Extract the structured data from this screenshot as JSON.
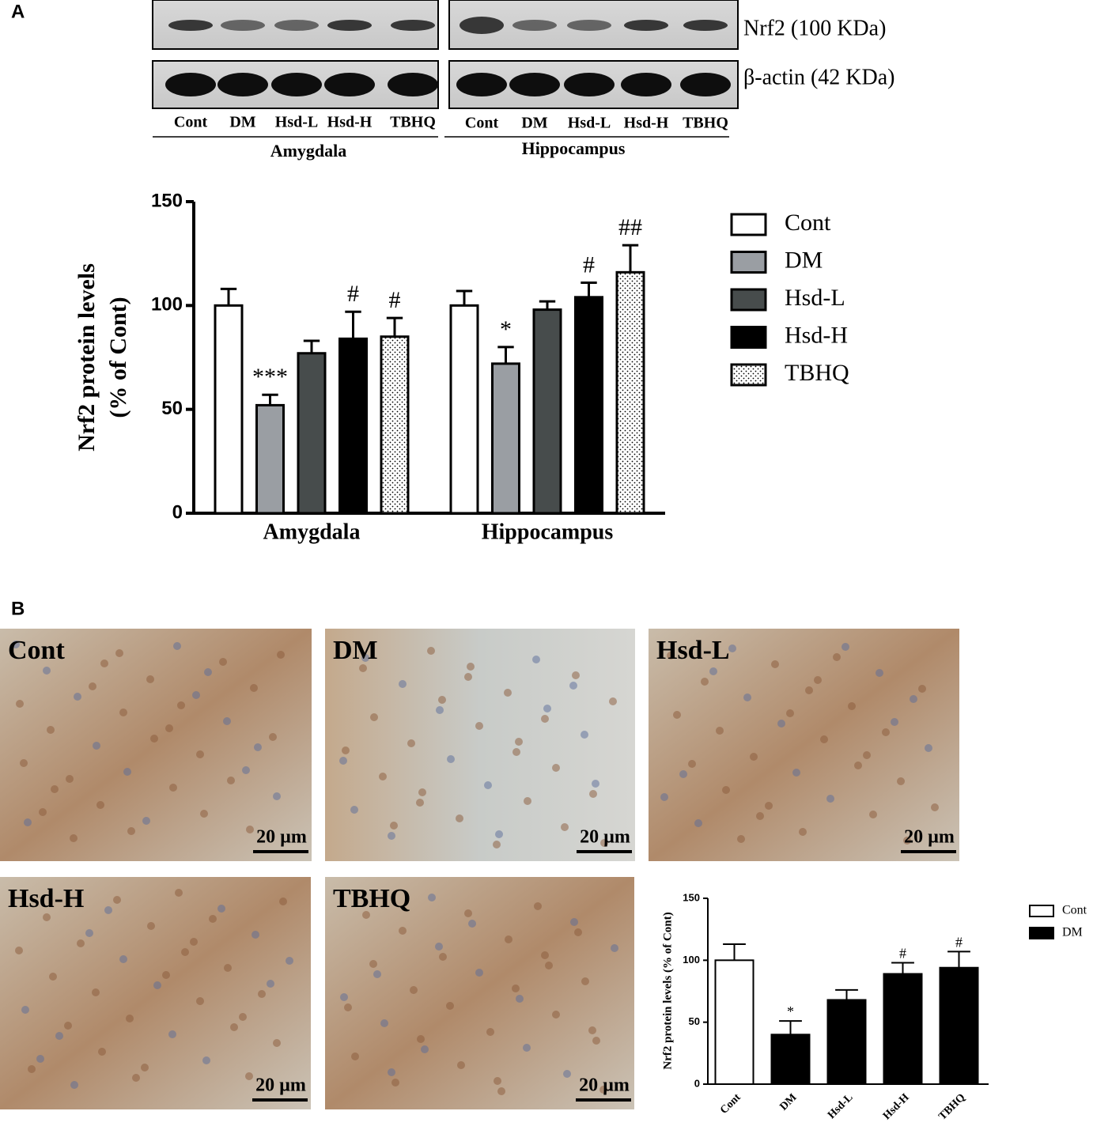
{
  "panel_a_label": "A",
  "panel_b_label": "B",
  "blot": {
    "bands": [
      "Nrf2 (100 KDa)",
      "β-actin (42 KDa)"
    ],
    "lanes": [
      [
        "Cont",
        "DM",
        "Hsd-L",
        "Hsd-H",
        "TBHQ"
      ],
      [
        "Cont",
        "DM",
        "Hsd-L",
        "Hsd-H",
        "TBHQ"
      ]
    ],
    "regions": [
      "Amygdala",
      "Hippocampus"
    ]
  },
  "micrographs": [
    {
      "label": "Cont",
      "scale": "20 µm"
    },
    {
      "label": "DM",
      "scale": "20 µm"
    },
    {
      "label": "Hsd-L",
      "scale": "20 µm"
    },
    {
      "label": "Hsd-H",
      "scale": "20 µm"
    },
    {
      "label": "TBHQ",
      "scale": "20 µm"
    }
  ],
  "chart_data": [
    {
      "type": "bar",
      "ylabel": [
        "Nrf2 protein levels",
        "(% of Cont)"
      ],
      "categories": [
        "Amygdala",
        "Hippocampus"
      ],
      "series": [
        {
          "name": "Cont",
          "color": "#ffffff",
          "values": [
            100,
            100
          ],
          "errors": [
            8,
            7
          ],
          "annotations": [
            null,
            null
          ]
        },
        {
          "name": "DM",
          "color": "#9a9ea3",
          "values": [
            52,
            72
          ],
          "errors": [
            5,
            8
          ],
          "annotations": [
            "***",
            "*"
          ]
        },
        {
          "name": "Hsd-L",
          "color": "#474c4c",
          "values": [
            77,
            98
          ],
          "errors": [
            6,
            4
          ],
          "annotations": [
            null,
            null
          ]
        },
        {
          "name": "Hsd-H",
          "color": "#000000",
          "values": [
            84,
            104
          ],
          "errors": [
            13,
            7
          ],
          "annotations": [
            "#",
            "#"
          ]
        },
        {
          "name": "TBHQ",
          "color": "#ffffff",
          "pattern": "dots",
          "values": [
            85,
            116
          ],
          "errors": [
            9,
            13
          ],
          "annotations": [
            "#",
            "##"
          ]
        }
      ],
      "ylim": [
        0,
        150
      ],
      "yticks": [
        0,
        50,
        100,
        150
      ]
    },
    {
      "type": "bar",
      "ylabel": "Nrf2 protein levels (% of Cont)",
      "categories": [
        "Cont",
        "DM",
        "Hsd-L",
        "Hsd-H",
        "TBHQ"
      ],
      "values": [
        100,
        40,
        68,
        89,
        94
      ],
      "errors": [
        13,
        11,
        8,
        9,
        13
      ],
      "colors": [
        "#ffffff",
        "#000000",
        "#000000",
        "#000000",
        "#000000"
      ],
      "annotations": [
        null,
        "*",
        null,
        "#",
        "#"
      ],
      "legend": [
        {
          "name": "Cont",
          "color": "#ffffff"
        },
        {
          "name": "DM",
          "color": "#000000"
        }
      ],
      "ylim": [
        0,
        150
      ],
      "yticks": [
        0,
        50,
        100,
        150
      ]
    }
  ]
}
